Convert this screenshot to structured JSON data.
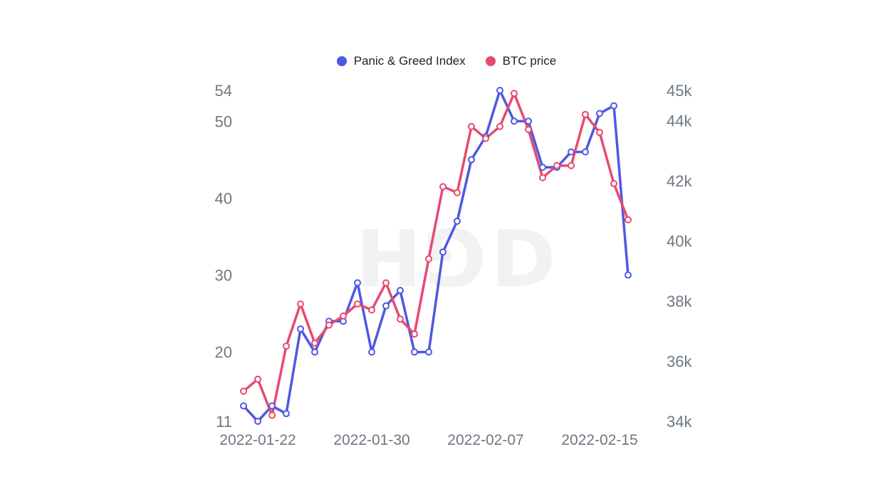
{
  "legend": {
    "series0": "Panic & Greed Index",
    "series1": "BTC price"
  },
  "watermark": "H⅁D",
  "colors": {
    "series0": "#4f58e0",
    "series1": "#e8496f",
    "tick": "#6e7781"
  },
  "chart_data": {
    "type": "line",
    "x": [
      "2022-01-21",
      "2022-01-22",
      "2022-01-23",
      "2022-01-24",
      "2022-01-25",
      "2022-01-26",
      "2022-01-27",
      "2022-01-28",
      "2022-01-29",
      "2022-01-30",
      "2022-01-31",
      "2022-02-01",
      "2022-02-02",
      "2022-02-03",
      "2022-02-04",
      "2022-02-05",
      "2022-02-06",
      "2022-02-07",
      "2022-02-08",
      "2022-02-09",
      "2022-02-10",
      "2022-02-11",
      "2022-02-12",
      "2022-02-13",
      "2022-02-14",
      "2022-02-15",
      "2022-02-16",
      "2022-02-17"
    ],
    "x_tick_labels": [
      "2022-01-22",
      "2022-01-30",
      "2022-02-07",
      "2022-02-15"
    ],
    "series": [
      {
        "name": "Panic & Greed Index",
        "axis": "left",
        "values": [
          13,
          11,
          13,
          12,
          23,
          20,
          24,
          24,
          29,
          20,
          26,
          28,
          20,
          20,
          33,
          37,
          45,
          48,
          54,
          50,
          50,
          44,
          44,
          46,
          46,
          51,
          52,
          30
        ]
      },
      {
        "name": "BTC price",
        "axis": "right",
        "values": [
          35000,
          35400,
          34200,
          36500,
          37900,
          36600,
          37200,
          37500,
          37900,
          37700,
          38600,
          37400,
          36900,
          39400,
          41800,
          41600,
          43800,
          43400,
          43800,
          44900,
          43700,
          42100,
          42500,
          42500,
          44200,
          43600,
          41900,
          40700
        ]
      }
    ],
    "y_left": {
      "ticks": [
        11,
        20,
        30,
        40,
        50,
        54
      ],
      "range": [
        11,
        54
      ]
    },
    "y_right": {
      "ticks": [
        "34k",
        "36k",
        "38k",
        "40k",
        "42k",
        "44k",
        "45k"
      ],
      "tick_values": [
        34000,
        36000,
        38000,
        40000,
        42000,
        44000,
        45000
      ],
      "range": [
        34000,
        45000
      ]
    },
    "legend_position": "top-center",
    "grid": false
  }
}
